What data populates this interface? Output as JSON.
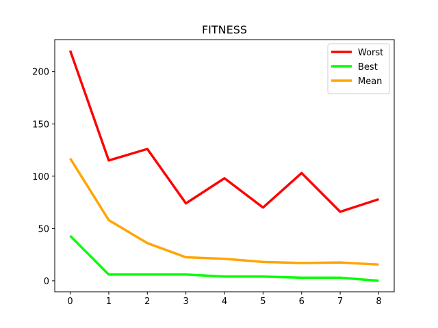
{
  "chart_data": {
    "type": "line",
    "title": "FITNESS",
    "xlabel": "",
    "ylabel": "",
    "x": [
      0,
      1,
      2,
      3,
      4,
      5,
      6,
      7,
      8
    ],
    "xlim": [
      -0.4,
      8.4
    ],
    "ylim": [
      -10.5,
      230.5
    ],
    "xticks": [
      0,
      1,
      2,
      3,
      4,
      5,
      6,
      7,
      8
    ],
    "yticks": [
      0,
      50,
      100,
      150,
      200
    ],
    "grid": false,
    "legend_position": "top-right",
    "series": [
      {
        "name": "Worst",
        "color": "#ff0000",
        "values": [
          220,
          115,
          126,
          74,
          98,
          70,
          103,
          66,
          78
        ]
      },
      {
        "name": "Best",
        "color": "#00ff00",
        "values": [
          43,
          6,
          6,
          6,
          4,
          4,
          3,
          3,
          0
        ]
      },
      {
        "name": "Mean",
        "color": "#ffa500",
        "values": [
          117,
          58,
          36,
          22.5,
          21,
          18,
          17,
          17.5,
          15.5
        ]
      }
    ]
  }
}
